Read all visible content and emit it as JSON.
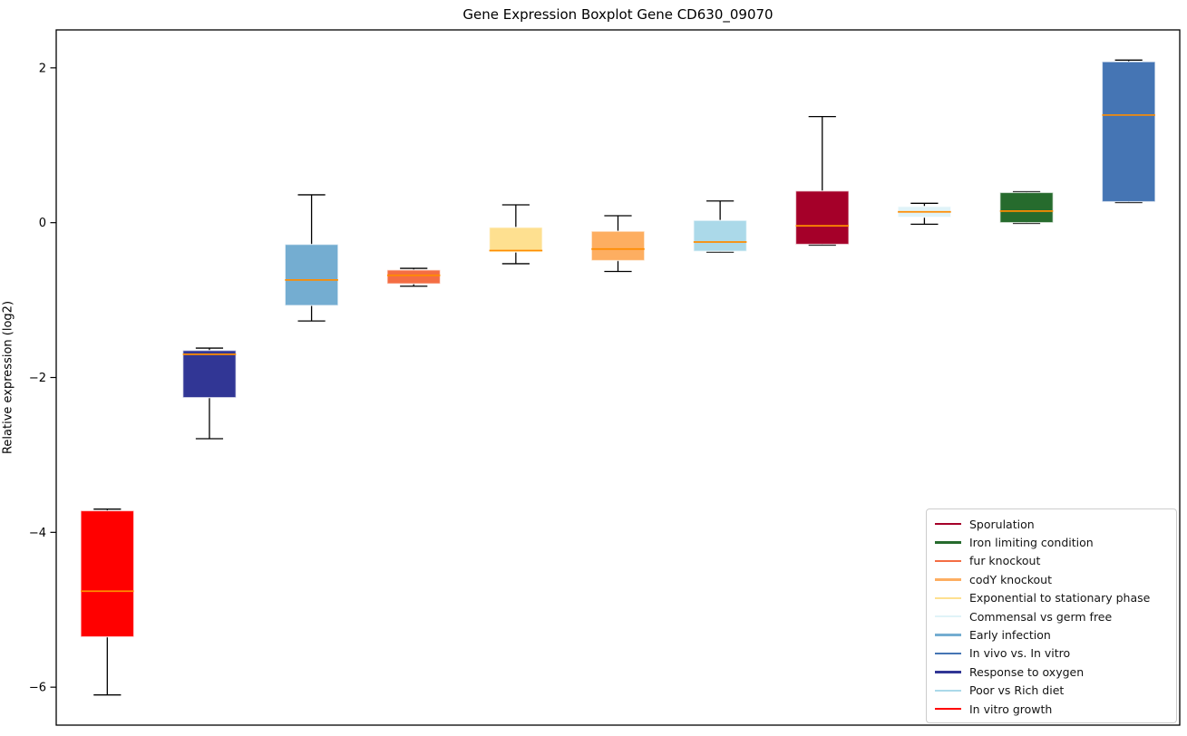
{
  "figure": {
    "title": "Gene Expression Boxplot Gene CD630_09070",
    "ylabel": "Relative expression (log2)"
  },
  "chart_data": {
    "type": "boxplot",
    "title": "Gene Expression Boxplot Gene CD630_09070",
    "xlabel": "",
    "ylabel": "Relative expression (log2)",
    "yticks": [
      2,
      0,
      -2,
      -4,
      -6
    ],
    "ylim": [
      -6.49,
      2.49
    ],
    "grid": false,
    "legend_position": "lower right",
    "median_color": "#ff8c00",
    "whisker_color": "#000000",
    "series": [
      {
        "name": "In vitro growth",
        "color": "#ff0000",
        "whisker_low": -6.1,
        "q1": -5.35,
        "median": -4.76,
        "q3": -3.72,
        "whisker_high": -3.7
      },
      {
        "name": "Response to oxygen",
        "color": "#313695",
        "whisker_low": -2.79,
        "q1": -2.26,
        "median": -1.7,
        "q3": -1.65,
        "whisker_high": -1.62
      },
      {
        "name": "Early infection",
        "color": "#74add1",
        "whisker_low": -1.27,
        "q1": -1.07,
        "median": -0.74,
        "q3": -0.28,
        "whisker_high": 0.36
      },
      {
        "name": "fur knockout",
        "color": "#f46d43",
        "whisker_low": -0.82,
        "q1": -0.79,
        "median": -0.68,
        "q3": -0.61,
        "whisker_high": -0.59
      },
      {
        "name": "Exponential to stationary phase",
        "color": "#fee090",
        "whisker_low": -0.53,
        "q1": -0.38,
        "median": -0.36,
        "q3": -0.06,
        "whisker_high": 0.23
      },
      {
        "name": "codY knockout",
        "color": "#fdae61",
        "whisker_low": -0.63,
        "q1": -0.49,
        "median": -0.34,
        "q3": -0.11,
        "whisker_high": 0.09
      },
      {
        "name": "Poor vs Rich diet",
        "color": "#abd9e9",
        "whisker_low": -0.38,
        "q1": -0.37,
        "median": -0.25,
        "q3": 0.03,
        "whisker_high": 0.28
      },
      {
        "name": "Sporulation",
        "color": "#a50029",
        "whisker_low": -0.29,
        "q1": -0.28,
        "median": -0.04,
        "q3": 0.41,
        "whisker_high": 1.37
      },
      {
        "name": "Commensal vs germ free",
        "color": "#e0f3f8",
        "whisker_low": -0.02,
        "q1": 0.07,
        "median": 0.14,
        "q3": 0.21,
        "whisker_high": 0.25
      },
      {
        "name": "Iron limiting condition",
        "color": "#266b2d",
        "whisker_low": -0.01,
        "q1": 0.0,
        "median": 0.15,
        "q3": 0.39,
        "whisker_high": 0.4
      },
      {
        "name": "In vivo vs. In vitro",
        "color": "#4575b4",
        "whisker_low": 0.26,
        "q1": 0.27,
        "median": 1.39,
        "q3": 2.08,
        "whisker_high": 2.1
      }
    ],
    "legend": [
      {
        "label": "Sporulation",
        "color": "#a50029"
      },
      {
        "label": "Iron limiting condition",
        "color": "#266b2d"
      },
      {
        "label": "fur knockout",
        "color": "#f46d43"
      },
      {
        "label": "codY knockout",
        "color": "#fdae61"
      },
      {
        "label": "Exponential to stationary phase",
        "color": "#fee090"
      },
      {
        "label": "Commensal vs germ free",
        "color": "#e0f3f8"
      },
      {
        "label": "Early infection",
        "color": "#74add1"
      },
      {
        "label": "In vivo vs. In vitro",
        "color": "#4575b4"
      },
      {
        "label": "Response to oxygen",
        "color": "#313695"
      },
      {
        "label": "Poor vs Rich diet",
        "color": "#abd9e9"
      },
      {
        "label": "In vitro growth",
        "color": "#ff0000"
      }
    ]
  }
}
